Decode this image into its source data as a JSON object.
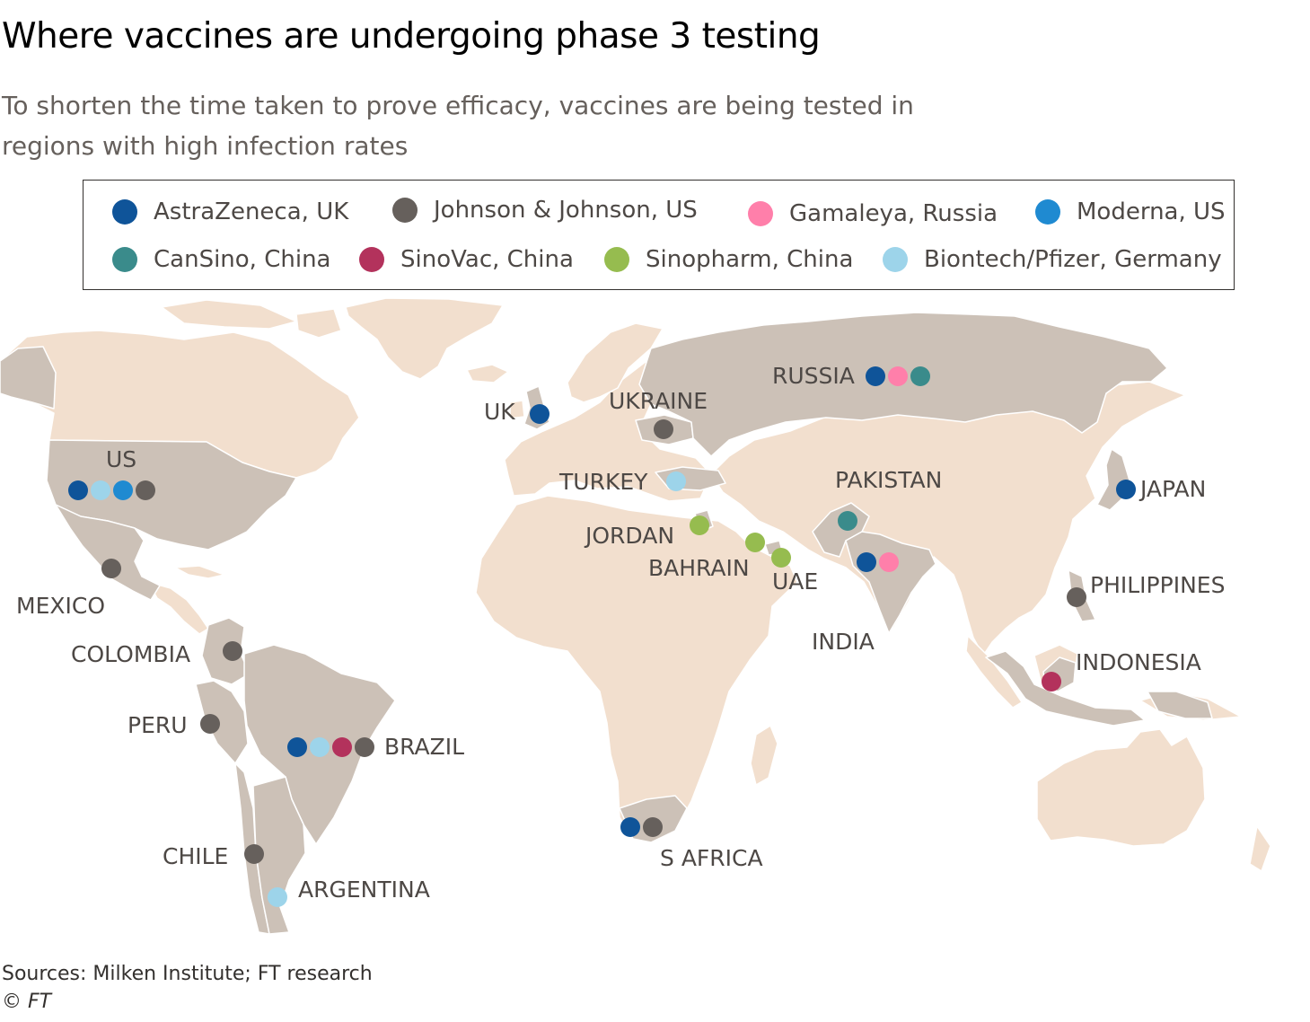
{
  "title": "Where vaccines are undergoing phase 3 testing",
  "subtitle": "To shorten the time taken to prove efficacy, vaccines are being tested in regions with high infection rates",
  "legend": [
    {
      "key": "astrazeneca",
      "label": "AstraZeneca, UK",
      "color": "#0f5499"
    },
    {
      "key": "jnj",
      "label": "Johnson & Johnson, US",
      "color": "#66605c"
    },
    {
      "key": "gamaleya",
      "label": "Gamaleya, Russia",
      "color": "#ff7faa"
    },
    {
      "key": "moderna",
      "label": "Moderna, US",
      "color": "#1f8ad1"
    },
    {
      "key": "cansino",
      "label": "CanSino, China",
      "color": "#3a8b8b"
    },
    {
      "key": "sinovac",
      "label": "SinoVac, China",
      "color": "#b3325c"
    },
    {
      "key": "sinopharm",
      "label": "Sinopharm, China",
      "color": "#96bc4f"
    },
    {
      "key": "biontech",
      "label": "Biontech/Pfizer, Germany",
      "color": "#9dd4ea"
    }
  ],
  "colors": {
    "trial_country": "#ccc1b7",
    "other_land": "#f2dfce",
    "border": "#ffffff"
  },
  "countries": [
    {
      "name": "US",
      "vaccines": [
        "astrazeneca",
        "biontech",
        "moderna",
        "jnj"
      ]
    },
    {
      "name": "MEXICO",
      "vaccines": [
        "jnj"
      ]
    },
    {
      "name": "COLOMBIA",
      "vaccines": [
        "jnj"
      ]
    },
    {
      "name": "PERU",
      "vaccines": [
        "jnj"
      ]
    },
    {
      "name": "BRAZIL",
      "vaccines": [
        "astrazeneca",
        "biontech",
        "sinovac",
        "jnj"
      ]
    },
    {
      "name": "CHILE",
      "vaccines": [
        "jnj"
      ]
    },
    {
      "name": "ARGENTINA",
      "vaccines": [
        "biontech"
      ]
    },
    {
      "name": "UK",
      "vaccines": [
        "astrazeneca"
      ]
    },
    {
      "name": "UKRAINE",
      "vaccines": [
        "jnj"
      ]
    },
    {
      "name": "TURKEY",
      "vaccines": [
        "biontech"
      ]
    },
    {
      "name": "JORDAN",
      "vaccines": [
        "sinopharm"
      ]
    },
    {
      "name": "BAHRAIN",
      "vaccines": [
        "sinopharm"
      ]
    },
    {
      "name": "UAE",
      "vaccines": [
        "sinopharm"
      ]
    },
    {
      "name": "S AFRICA",
      "vaccines": [
        "astrazeneca",
        "jnj"
      ]
    },
    {
      "name": "RUSSIA",
      "vaccines": [
        "astrazeneca",
        "gamaleya",
        "cansino"
      ]
    },
    {
      "name": "PAKISTAN",
      "vaccines": [
        "cansino"
      ]
    },
    {
      "name": "INDIA",
      "vaccines": [
        "astrazeneca",
        "gamaleya"
      ]
    },
    {
      "name": "JAPAN",
      "vaccines": [
        "astrazeneca"
      ]
    },
    {
      "name": "PHILIPPINES",
      "vaccines": [
        "jnj"
      ]
    },
    {
      "name": "INDONESIA",
      "vaccines": [
        "sinovac"
      ]
    }
  ],
  "source": "Sources: Milken Institute; FT research",
  "copyright": "© FT"
}
